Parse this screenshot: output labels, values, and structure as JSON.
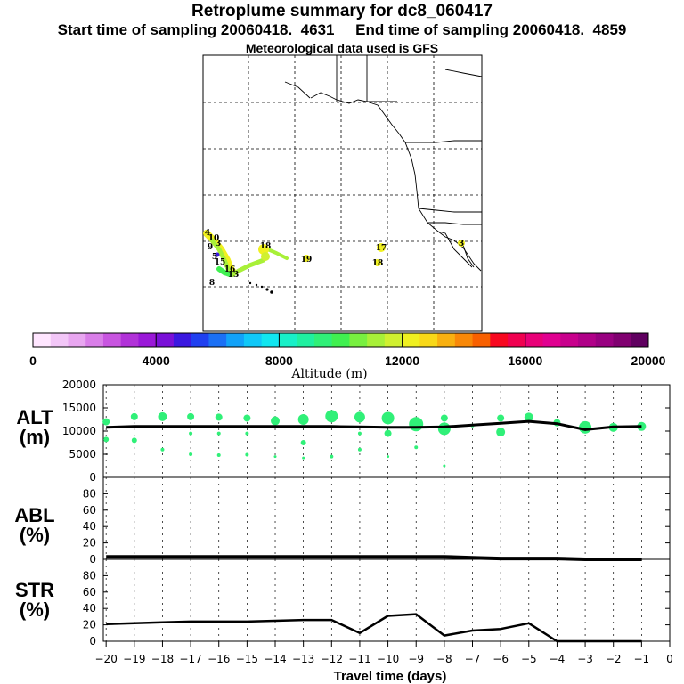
{
  "header": {
    "title": "Retroplume summary for dc8_060417",
    "line2": "Start time of sampling 20060418.  4631     End time of sampling 20060418.  4859",
    "line3": "Meteorological data used is GFS"
  },
  "colorbar": {
    "ticks": [
      "0",
      "4000",
      "8000",
      "12000",
      "16000",
      "20000"
    ],
    "label": "Altitude (m)",
    "colors": [
      "#ffe6ff",
      "#f2c6f7",
      "#e8a6f0",
      "#d97ee8",
      "#c855e0",
      "#b132d8",
      "#9a18d8",
      "#7a10d8",
      "#3b18e0",
      "#2040f0",
      "#1b70f5",
      "#12a2f8",
      "#10c8f8",
      "#10e6f0",
      "#18f0c8",
      "#20f0a0",
      "#30f078",
      "#40f050",
      "#78f040",
      "#a8f038",
      "#d0f030",
      "#f0f020",
      "#f8d818",
      "#f8b010",
      "#f88808",
      "#f86000",
      "#f80820",
      "#f00050",
      "#e80078",
      "#e00090",
      "#c8008c",
      "#b00088",
      "#980080",
      "#800070",
      "#600060"
    ]
  },
  "map": {
    "day_labels": [
      {
        "text": "4"
      },
      {
        "text": "10"
      },
      {
        "text": "9"
      },
      {
        "text": "3"
      },
      {
        "text": "5"
      },
      {
        "text": "15"
      },
      {
        "text": "16"
      },
      {
        "text": "8"
      },
      {
        "text": "13"
      },
      {
        "text": "18"
      },
      {
        "text": "19"
      },
      {
        "text": "17"
      },
      {
        "text": "18"
      },
      {
        "text": "3"
      }
    ]
  },
  "panels": {
    "alt": {
      "label1": "ALT",
      "label2": "(m)"
    },
    "abl": {
      "label1": "ABL",
      "label2": "(%)"
    },
    "str": {
      "label1": "STR",
      "label2": "(%)"
    },
    "xlabel": "Travel time (days)"
  },
  "chart_data": [
    {
      "type": "line",
      "name": "ALT",
      "ylabel": "ALT (m)",
      "ylim": [
        0,
        20000
      ],
      "yticks": [
        "0",
        "5000",
        "10000",
        "15000",
        "20000"
      ],
      "x": [
        -20,
        -19,
        -18,
        -17,
        -16,
        -15,
        -14,
        -13,
        -12,
        -11,
        -10,
        -9,
        -8,
        -7,
        -6,
        -5,
        -4,
        -3,
        -2,
        -1
      ],
      "median": [
        10800,
        11000,
        11000,
        11000,
        11000,
        11000,
        11000,
        11000,
        11000,
        10900,
        10800,
        10800,
        10900,
        11300,
        11700,
        12100,
        11600,
        10300,
        10900,
        11000
      ],
      "dots": [
        {
          "x": -20,
          "y": 12000,
          "s": 4
        },
        {
          "x": -20,
          "y": 8200,
          "s": 3
        },
        {
          "x": -19,
          "y": 13100,
          "s": 4
        },
        {
          "x": -19,
          "y": 8000,
          "s": 3
        },
        {
          "x": -18,
          "y": 13100,
          "s": 5
        },
        {
          "x": -18,
          "y": 6000,
          "s": 2
        },
        {
          "x": -17,
          "y": 13100,
          "s": 4
        },
        {
          "x": -17,
          "y": 9500,
          "s": 2
        },
        {
          "x": -17,
          "y": 5000,
          "s": 2
        },
        {
          "x": -16,
          "y": 13000,
          "s": 4
        },
        {
          "x": -16,
          "y": 9500,
          "s": 2
        },
        {
          "x": -16,
          "y": 4800,
          "s": 2
        },
        {
          "x": -15,
          "y": 12800,
          "s": 4
        },
        {
          "x": -15,
          "y": 9500,
          "s": 2
        },
        {
          "x": -15,
          "y": 4900,
          "s": 2
        },
        {
          "x": -14,
          "y": 12200,
          "s": 5
        },
        {
          "x": -14,
          "y": 4500,
          "s": 1.5
        },
        {
          "x": -13,
          "y": 12500,
          "s": 6
        },
        {
          "x": -13,
          "y": 7500,
          "s": 3
        },
        {
          "x": -13,
          "y": 4200,
          "s": 1.5
        },
        {
          "x": -12,
          "y": 13200,
          "s": 7
        },
        {
          "x": -12,
          "y": 4500,
          "s": 2
        },
        {
          "x": -11,
          "y": 13000,
          "s": 6
        },
        {
          "x": -11,
          "y": 9500,
          "s": 2
        },
        {
          "x": -11,
          "y": 6000,
          "s": 2
        },
        {
          "x": -10,
          "y": 12800,
          "s": 7
        },
        {
          "x": -10,
          "y": 9500,
          "s": 4
        },
        {
          "x": -10,
          "y": 4500,
          "s": 1.5
        },
        {
          "x": -9,
          "y": 11500,
          "s": 8
        },
        {
          "x": -9,
          "y": 6500,
          "s": 2
        },
        {
          "x": -8,
          "y": 12800,
          "s": 4
        },
        {
          "x": -8,
          "y": 10500,
          "s": 7
        },
        {
          "x": -8,
          "y": 2500,
          "s": 1.5
        },
        {
          "x": -7,
          "y": 11200,
          "s": 2
        },
        {
          "x": -6,
          "y": 12800,
          "s": 4
        },
        {
          "x": -6,
          "y": 9800,
          "s": 5
        },
        {
          "x": -5,
          "y": 13000,
          "s": 5
        },
        {
          "x": -4,
          "y": 11800,
          "s": 4
        },
        {
          "x": -3,
          "y": 10800,
          "s": 7
        },
        {
          "x": -2,
          "y": 10800,
          "s": 5
        },
        {
          "x": -1,
          "y": 11000,
          "s": 5
        }
      ]
    },
    {
      "type": "line",
      "name": "ABL",
      "ylabel": "ABL (%)",
      "ylim": [
        0,
        100
      ],
      "yticks": [
        "0",
        "20",
        "40",
        "60",
        "80"
      ],
      "x": [
        -20,
        -19,
        -18,
        -17,
        -16,
        -15,
        -14,
        -13,
        -12,
        -11,
        -10,
        -9,
        -8,
        -7,
        -6,
        -5,
        -4,
        -3,
        -2,
        -1
      ],
      "values": [
        3,
        3,
        3,
        3,
        3,
        3,
        3,
        3,
        3,
        3,
        3,
        3,
        3,
        2,
        1,
        1,
        1,
        0,
        0,
        0
      ]
    },
    {
      "type": "line",
      "name": "STR",
      "ylabel": "STR (%)",
      "ylim": [
        0,
        100
      ],
      "yticks": [
        "0",
        "20",
        "40",
        "60",
        "80"
      ],
      "x": [
        -20,
        -19,
        -18,
        -17,
        -16,
        -15,
        -14,
        -13,
        -12,
        -11,
        -10,
        -9,
        -8,
        -7,
        -6,
        -5,
        -4,
        -3,
        -2,
        -1
      ],
      "values": [
        21,
        22,
        23,
        24,
        24,
        24,
        25,
        26,
        26,
        10,
        31,
        33,
        7,
        13,
        15,
        22,
        0,
        0,
        0,
        0
      ]
    }
  ],
  "xaxis": {
    "ticks": [
      "−20",
      "−19",
      "−18",
      "−17",
      "−16",
      "−15",
      "−14",
      "−13",
      "−12",
      "−11",
      "−10",
      "−9",
      "−8",
      "−7",
      "−6",
      "−5",
      "−4",
      "−3",
      "−2",
      "−1",
      "0"
    ]
  }
}
